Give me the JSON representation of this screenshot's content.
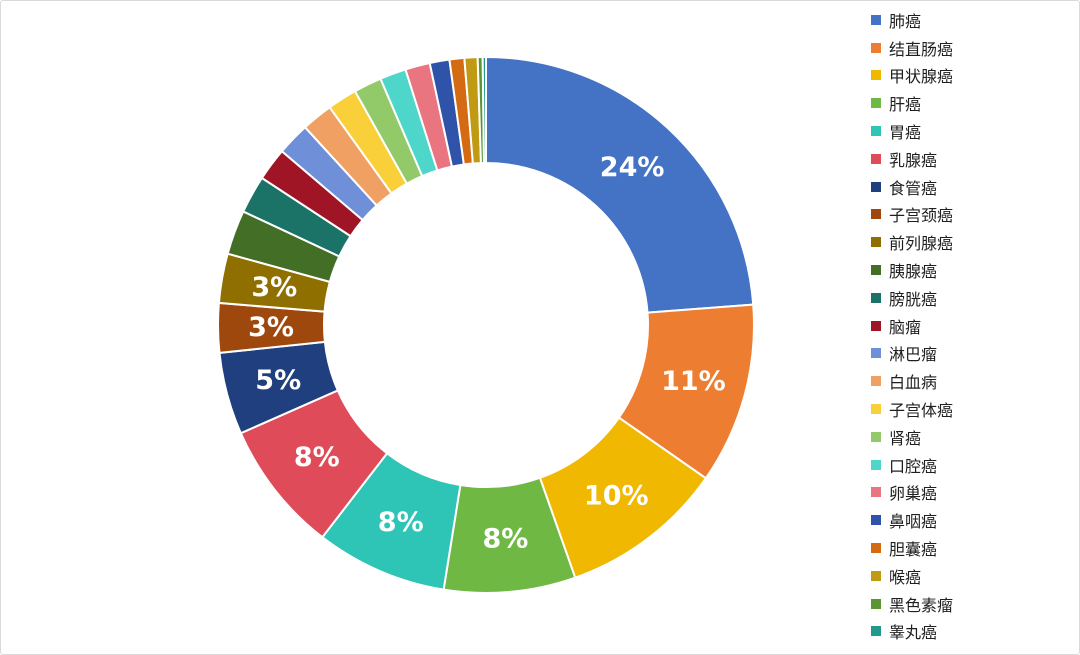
{
  "chart_data": {
    "type": "pie",
    "donut": true,
    "title": "",
    "legend_placement": "right",
    "categories": [
      "肺癌",
      "结直肠癌",
      "甲状腺癌",
      "肝癌",
      "胃癌",
      "乳腺癌",
      "食管癌",
      "子宫颈癌",
      "前列腺癌",
      "胰腺癌",
      "膀胱癌",
      "脑瘤",
      "淋巴瘤",
      "白血病",
      "子宫体癌",
      "肾癌",
      "口腔癌",
      "卵巢癌",
      "鼻咽癌",
      "胆囊癌",
      "喉癌",
      "黑色素瘤",
      "睾丸癌"
    ],
    "values": [
      24,
      11,
      10,
      8,
      8,
      8,
      5,
      3,
      3,
      2.7,
      2.3,
      2,
      2,
      1.9,
      1.8,
      1.7,
      1.6,
      1.5,
      1.2,
      0.9,
      0.8,
      0.3,
      0.2
    ],
    "data_labels": [
      "24%",
      "11%",
      "10%",
      "8%",
      "8%",
      "8%",
      "5%",
      "3%",
      "3%",
      "",
      "",
      "",
      "",
      "",
      "",
      "",
      "",
      "",
      "",
      "",
      "",
      "",
      ""
    ],
    "colors": [
      "#4472C4",
      "#ED7D31",
      "#F0B800",
      "#70B844",
      "#2EC4B6",
      "#E04B5A",
      "#203F7F",
      "#9E480E",
      "#8F6F00",
      "#436E26",
      "#1B7266",
      "#A01525",
      "#6F8FD8",
      "#F1A063",
      "#F9CF3A",
      "#92CA6A",
      "#4FD6CB",
      "#E87580",
      "#2F53A8",
      "#D46A12",
      "#C09A12",
      "#5B9530",
      "#219A8C"
    ]
  }
}
